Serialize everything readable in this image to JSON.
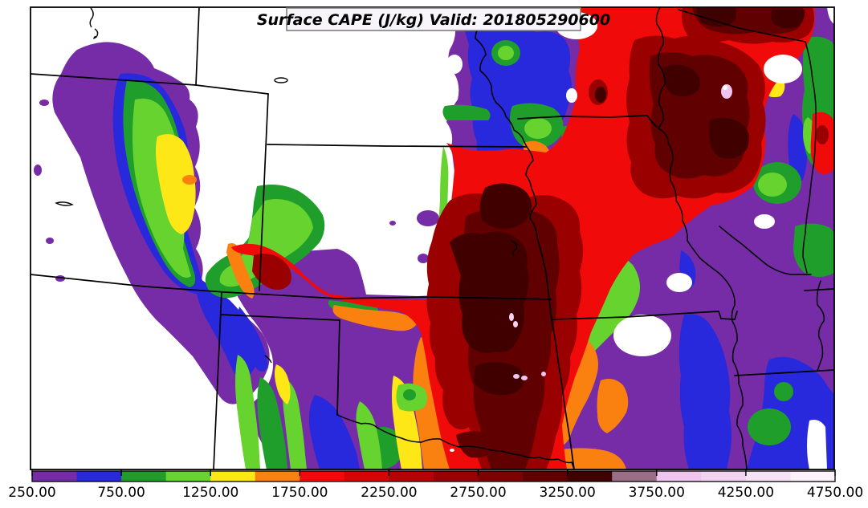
{
  "title": {
    "text": "Surface CAPE (J/kg) Valid: 201805290600"
  },
  "chart_data": {
    "type": "heatmap",
    "subtype": "filled-contour-weather-map",
    "title": "Surface CAPE (J/kg) Valid: 201805290600",
    "variable": "Surface CAPE",
    "units": "J/kg",
    "valid_time": "201805290600",
    "legend_position": "bottom",
    "grid": false,
    "colorbar": {
      "min": 250,
      "max": 4750,
      "segment_interval": 250,
      "tick_interval": 500,
      "tick_labels": [
        "250.00",
        "750.00",
        "1250.00",
        "1750.00",
        "2250.00",
        "2750.00",
        "3250.00",
        "3750.00",
        "4250.00",
        "4750.00"
      ],
      "level_bounds": [
        250,
        500,
        750,
        1000,
        1250,
        1500,
        1750,
        2000,
        2250,
        2500,
        2750,
        3000,
        3250,
        3500,
        3750,
        4000,
        4250,
        4500,
        4750
      ],
      "colors": [
        "#762CA7",
        "#2828DC",
        "#1F9E2C",
        "#66D32E",
        "#FEE716",
        "#FA8010",
        "#F00A0A",
        "#D40505",
        "#B80202",
        "#9B0000",
        "#7E0000",
        "#600000",
        "#400000",
        "#9A6E86",
        "#EFC4EF",
        "#F2D4F2",
        "#F6E3F6",
        "#FBF2FB"
      ]
    },
    "field_summary": {
      "low_cape_areas": "white (below 250 J/kg) over west and north-center of domain",
      "maxima": "dark maroon cores (3000-3500 J/kg) over central/southern plains and upper-right region",
      "extreme_specks_above_3750": "small pink spots inside dark cores"
    }
  },
  "map": {
    "background_color": "#ffffff",
    "border_color": "#000000",
    "state_border_color": "#000000"
  }
}
